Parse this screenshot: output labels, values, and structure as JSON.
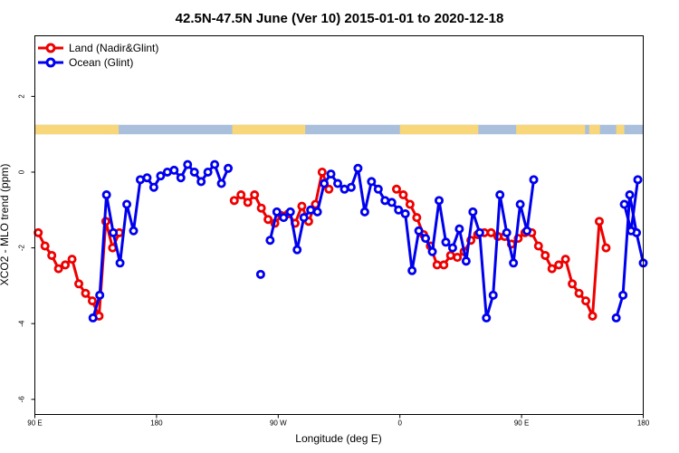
{
  "chart_data": {
    "type": "line",
    "title": "42.5N-47.5N June (Ver 10)   2015-01-01 to 2020-12-18",
    "xlabel": "Longitude (deg E)",
    "ylabel": "XCO2 - MLO trend (ppm)",
    "xlim": [
      90,
      540
    ],
    "ylim": [
      -6.4,
      3.6
    ],
    "x_ticks": [
      {
        "value": 90,
        "label": "90 E"
      },
      {
        "value": 180,
        "label": "180"
      },
      {
        "value": 270,
        "label": "90 W"
      },
      {
        "value": 360,
        "label": "0"
      },
      {
        "value": 450,
        "label": "90 E"
      },
      {
        "value": 540,
        "label": "180"
      }
    ],
    "y_ticks": [
      {
        "value": 2,
        "label": "2"
      },
      {
        "value": 0,
        "label": "0"
      },
      {
        "value": -2,
        "label": "-2"
      },
      {
        "value": -4,
        "label": "-4"
      },
      {
        "value": -6,
        "label": "-6"
      }
    ],
    "legend_position": "top-left",
    "land_ocean_band": {
      "y_range": [
        1.0,
        1.25
      ],
      "ocean_color": "#a9bfdc",
      "land_color": "#f7d77a",
      "land_segments": [
        [
          90,
          146
        ],
        [
          144,
          152
        ],
        [
          236,
          290
        ],
        [
          360,
          418
        ],
        [
          446,
          497
        ],
        [
          500,
          508
        ],
        [
          520,
          526
        ]
      ]
    },
    "series": [
      {
        "name": "Land (Nadir&Glint)",
        "color": "#ee0000",
        "x": [
          92.5,
          97.5,
          102.5,
          107.5,
          112.5,
          117.5,
          122.5,
          127.5,
          132.5,
          137.5,
          142.5,
          147.5,
          152.5,
          237.5,
          242.5,
          247.5,
          252.5,
          257.5,
          262.5,
          267.5,
          272.5,
          277.5,
          282.5,
          287.5,
          292.5,
          297.5,
          302.5,
          307.5,
          357.5,
          362.5,
          367.5,
          372.5,
          377.5,
          382.5,
          387.5,
          392.5,
          397.5,
          402.5,
          407.5,
          412.5,
          417.5,
          422.5,
          427.5,
          432.5,
          437.5,
          442.5,
          447.5,
          452.5,
          457.5,
          462.5,
          467.5,
          472.5,
          477.5,
          482.5,
          487.5,
          492.5,
          497.5,
          502.5,
          507.5,
          512.5
        ],
        "y": [
          -1.6,
          -1.95,
          -2.2,
          -2.55,
          -2.45,
          -2.3,
          -2.95,
          -3.2,
          -3.4,
          -3.8,
          -1.3,
          -2.0,
          -1.6,
          -0.75,
          -0.6,
          -0.8,
          -0.6,
          -0.95,
          -1.25,
          -1.35,
          -1.15,
          -1.1,
          -1.35,
          -0.9,
          -1.3,
          -0.85,
          0.0,
          -0.45,
          -0.45,
          -0.6,
          -0.85,
          -1.2,
          -1.65,
          -1.95,
          -2.45,
          -2.45,
          -2.2,
          -2.25,
          -2.1,
          -1.8,
          -1.65,
          -1.6,
          -1.6,
          -1.7,
          -1.7,
          -1.9,
          -1.75,
          -1.6,
          -1.6,
          -1.95,
          -2.2,
          -2.55,
          -2.45,
          -2.3,
          -2.95,
          -3.2,
          -3.4,
          -3.8,
          -1.3,
          -2.0
        ]
      },
      {
        "name": "Ocean (Glint)",
        "color": "#0000ee",
        "segments": [
          {
            "x": [
              133,
              138,
              143,
              148,
              153,
              158,
              163,
              168,
              173,
              178,
              183,
              188,
              193,
              198,
              203,
              208,
              213,
              218,
              223,
              228,
              233
            ],
            "y": [
              -3.85,
              -3.25,
              -0.6,
              -1.6,
              -2.4,
              -0.85,
              -1.55,
              -0.2,
              -0.15,
              -0.4,
              -0.1,
              0.0,
              0.05,
              -0.15,
              0.2,
              0.0,
              -0.25,
              0.0,
              0.2,
              -0.3,
              0.1
            ]
          },
          {
            "x": [
              257
            ],
            "y": [
              -2.7
            ]
          },
          {
            "x": [
              264,
              269,
              274,
              279,
              284,
              289,
              294,
              299,
              304,
              309,
              314,
              319,
              324,
              329,
              334,
              339,
              344,
              349,
              354,
              359,
              364,
              369,
              374,
              379,
              384,
              389,
              394,
              399,
              404,
              409,
              414,
              419,
              424,
              429,
              434,
              439,
              444,
              449,
              454,
              459
            ],
            "y": [
              -1.8,
              -1.05,
              -1.2,
              -1.05,
              -2.05,
              -1.2,
              -1.0,
              -1.05,
              -0.3,
              -0.05,
              -0.3,
              -0.45,
              -0.4,
              0.1,
              -1.05,
              -0.25,
              -0.45,
              -0.75,
              -0.8,
              -1.0,
              -1.1,
              -2.6,
              -1.55,
              -1.75,
              -2.1,
              -0.75,
              -1.85,
              -2.0,
              -1.5,
              -2.35,
              -1.05,
              -1.6,
              -3.85,
              -3.25,
              -0.6,
              -1.6,
              -2.4,
              -0.85,
              -1.55,
              -0.2
            ]
          },
          {
            "x": [
              520,
              525,
              530,
              535,
              540
            ],
            "y": [
              -3.85,
              -3.25,
              -0.6,
              -1.6,
              -2.4
            ]
          },
          {
            "x": [
              526,
              531,
              536,
              541
            ],
            "y": [
              -0.85,
              -1.55,
              -0.2,
              -0.35
            ]
          }
        ]
      }
    ]
  }
}
